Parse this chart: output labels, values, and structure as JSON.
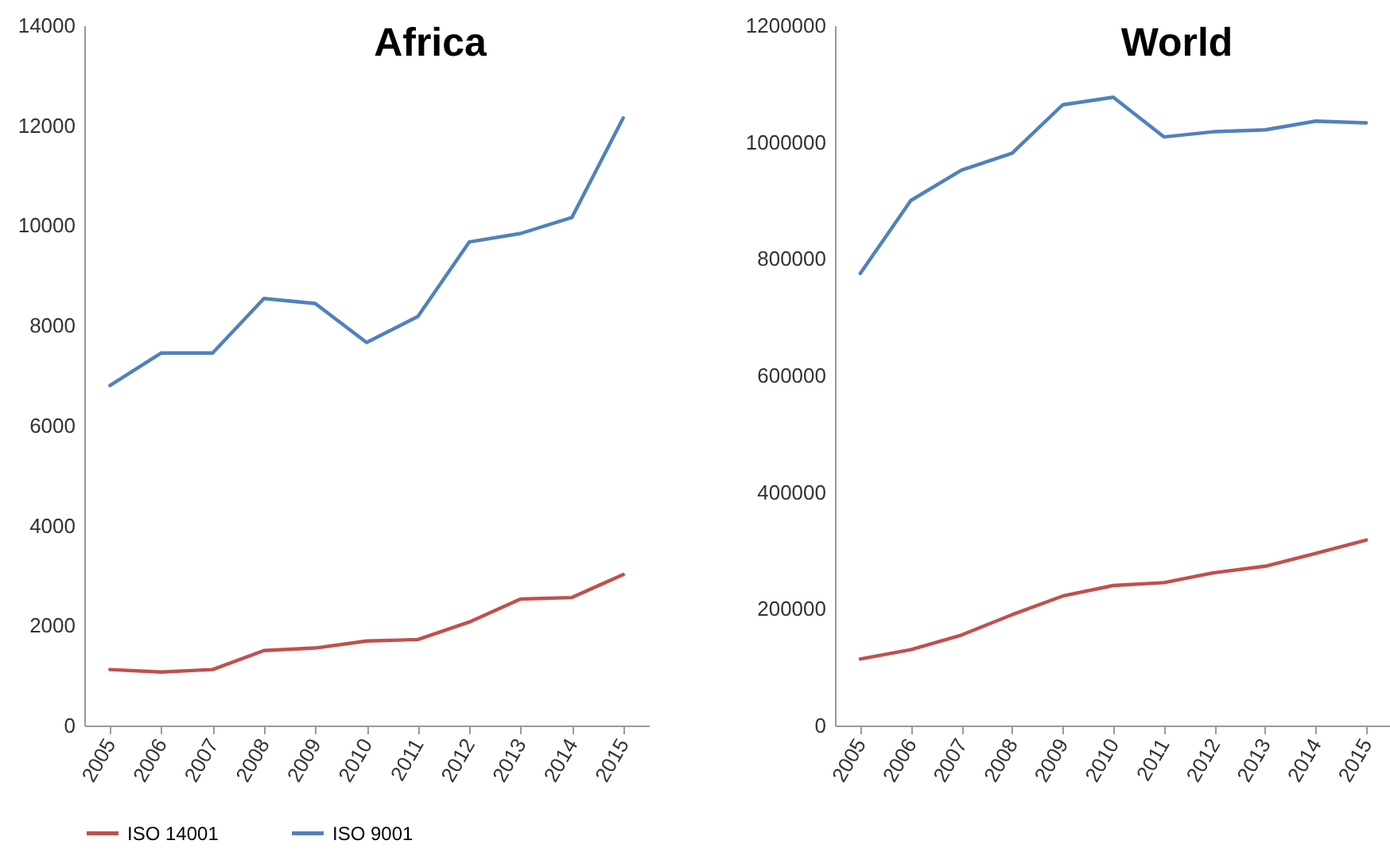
{
  "chart_data": [
    {
      "type": "line",
      "title": "Africa",
      "categories": [
        "2005",
        "2006",
        "2007",
        "2008",
        "2009",
        "2010",
        "2011",
        "2012",
        "2013",
        "2014",
        "2015"
      ],
      "ylim": [
        0,
        14000
      ],
      "yticks": [
        0,
        2000,
        4000,
        6000,
        8000,
        10000,
        12000,
        14000
      ],
      "legend": "bottom",
      "series": [
        {
          "name": "ISO 14001",
          "color": "#c0504d",
          "values": [
            1120,
            1070,
            1120,
            1500,
            1550,
            1690,
            1720,
            2070,
            2530,
            2560,
            3020
          ]
        },
        {
          "name": "ISO 9001",
          "color": "#4f81bd",
          "values": [
            6800,
            7450,
            7450,
            8540,
            8440,
            7660,
            8180,
            9670,
            9840,
            10160,
            12150
          ]
        }
      ]
    },
    {
      "type": "line",
      "title": "World",
      "categories": [
        "2005",
        "2006",
        "2007",
        "2008",
        "2009",
        "2010",
        "2011",
        "2012",
        "2013",
        "2014",
        "2015"
      ],
      "ylim": [
        0,
        1200000
      ],
      "yticks": [
        0,
        200000,
        400000,
        600000,
        800000,
        1000000,
        1200000
      ],
      "legend": "bottom",
      "series": [
        {
          "name": "ISO 14001",
          "color": "#c0504d",
          "values": [
            114000,
            130000,
            155000,
            190000,
            222000,
            240000,
            245000,
            262000,
            273000,
            295000,
            318000
          ]
        },
        {
          "name": "ISO 9001",
          "color": "#4f81bd",
          "values": [
            775000,
            900000,
            952000,
            981000,
            1064000,
            1077000,
            1009000,
            1018000,
            1021000,
            1036000,
            1033000
          ]
        }
      ]
    }
  ]
}
